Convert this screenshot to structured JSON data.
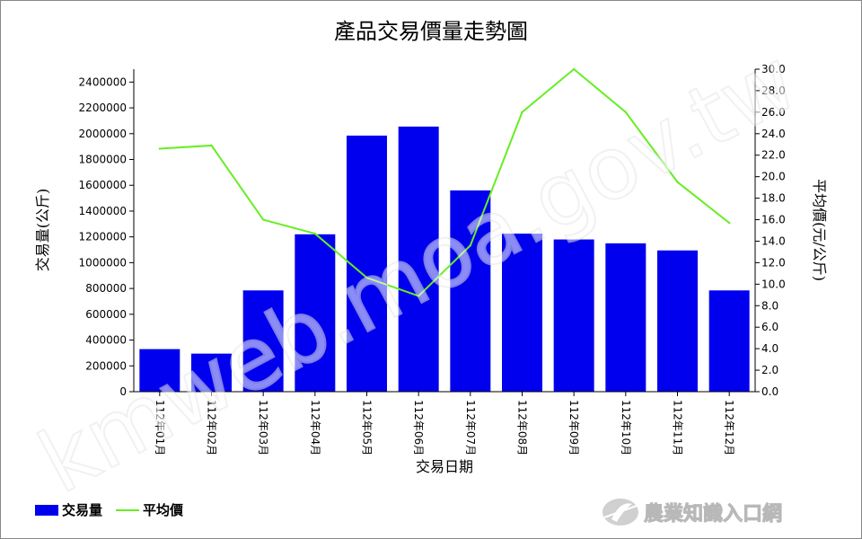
{
  "chart_data": {
    "type": "bar",
    "title": "產品交易價量走勢圖",
    "xlabel": "交易日期",
    "ylabel": "交易量(公斤)",
    "y2label": "平均價(元/公斤)",
    "categories": [
      "112年01月",
      "112年02月",
      "112年03月",
      "112年04月",
      "112年05月",
      "112年06月",
      "112年07月",
      "112年08月",
      "112年09月",
      "112年10月",
      "112年11月",
      "112年12月"
    ],
    "series": [
      {
        "name": "交易量",
        "type": "bar",
        "axis": "left",
        "color": "#0000ee",
        "values": [
          330000,
          295000,
          785000,
          1220000,
          1985000,
          2055000,
          1560000,
          1225000,
          1180000,
          1150000,
          1095000,
          785000
        ]
      },
      {
        "name": "平均價",
        "type": "line",
        "axis": "right",
        "color": "#66ee22",
        "values": [
          22.6,
          22.9,
          16.0,
          14.7,
          10.6,
          8.9,
          13.6,
          26.0,
          30.0,
          26.0,
          19.5,
          15.7
        ]
      }
    ],
    "ylim": [
      0,
      2500000
    ],
    "y_ticks": [
      "0",
      "200000",
      "400000",
      "600000",
      "800000",
      "1000000",
      "1200000",
      "1400000",
      "1600000",
      "1800000",
      "2000000",
      "2200000",
      "2400000"
    ],
    "y2lim": [
      0,
      30
    ],
    "y2_ticks": [
      "0.0",
      "2.0",
      "4.0",
      "6.0",
      "8.0",
      "10.0",
      "12.0",
      "14.0",
      "16.0",
      "18.0",
      "20.0",
      "22.0",
      "24.0",
      "26.0",
      "28.0",
      "30.0"
    ],
    "left_axis_color": "#0000aa",
    "right_axis_color": "#007700",
    "legend_position": "bottom-left",
    "grid": false
  },
  "watermark": "kmweb.moa.gov.tw",
  "logo": {
    "text": "農業知識入口網",
    "icon": "leaf-logo-icon"
  }
}
